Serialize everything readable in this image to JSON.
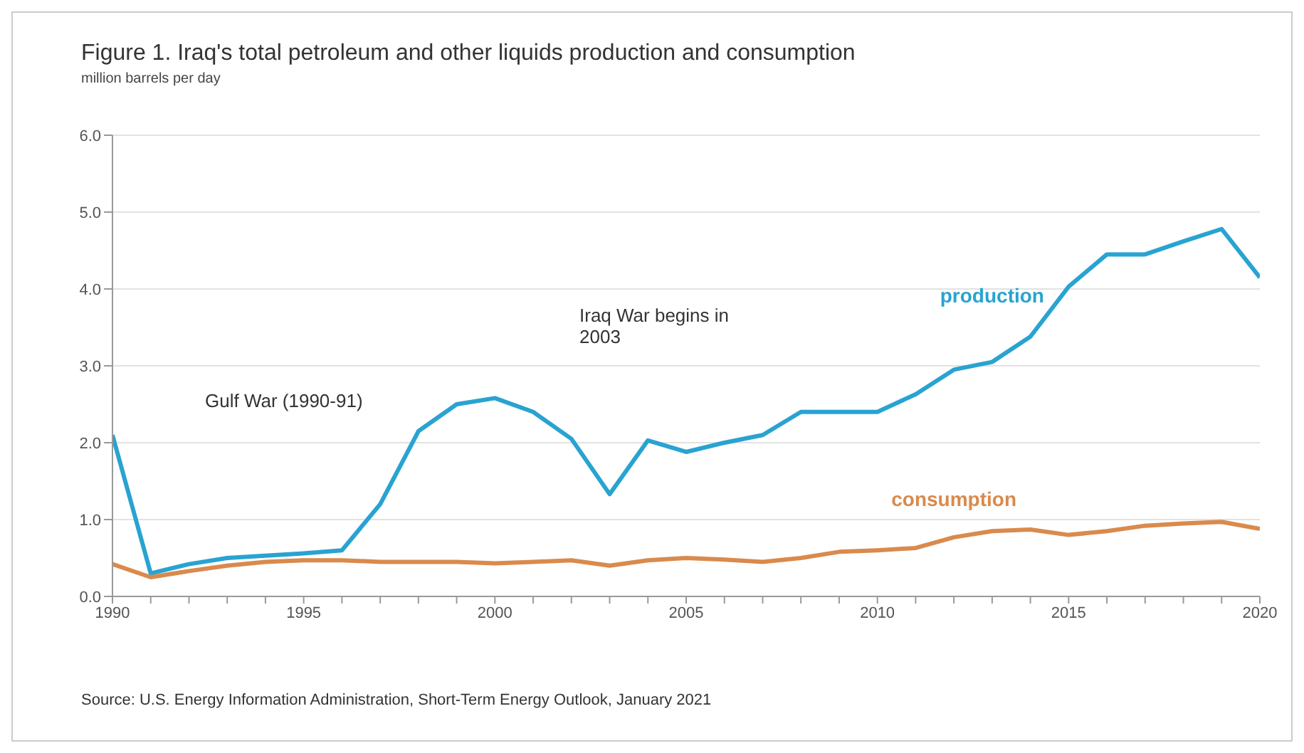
{
  "chart_data": {
    "type": "line",
    "title": "Figure 1. Iraq's total petroleum and other liquids production and consumption",
    "ylabel": "million barrels per day",
    "x": [
      1990,
      1991,
      1992,
      1993,
      1994,
      1995,
      1996,
      1997,
      1998,
      1999,
      2000,
      2001,
      2002,
      2003,
      2004,
      2005,
      2006,
      2007,
      2008,
      2009,
      2010,
      2011,
      2012,
      2013,
      2014,
      2015,
      2016,
      2017,
      2018,
      2019,
      2020
    ],
    "series": [
      {
        "name": "production",
        "color": "#29a3d1",
        "values": [
          2.1,
          0.3,
          0.42,
          0.5,
          0.53,
          0.56,
          0.6,
          1.2,
          2.15,
          2.5,
          2.58,
          2.4,
          2.05,
          1.33,
          2.03,
          1.88,
          2.0,
          2.1,
          2.4,
          2.4,
          2.4,
          2.63,
          2.95,
          3.05,
          3.38,
          4.03,
          4.45,
          4.45,
          4.62,
          4.78,
          4.15
        ]
      },
      {
        "name": "consumption",
        "color": "#d98a4c",
        "values": [
          0.42,
          0.25,
          0.33,
          0.4,
          0.45,
          0.47,
          0.47,
          0.45,
          0.45,
          0.45,
          0.43,
          0.45,
          0.47,
          0.4,
          0.47,
          0.5,
          0.48,
          0.45,
          0.5,
          0.58,
          0.6,
          0.63,
          0.77,
          0.85,
          0.87,
          0.8,
          0.85,
          0.92,
          0.95,
          0.97,
          0.88
        ]
      }
    ],
    "xlim": [
      1990,
      2020
    ],
    "xticks": [
      1990,
      {
        "value": 1991,
        "label": null
      },
      {
        "value": 1992,
        "label": null
      },
      {
        "value": 1993,
        "label": null
      },
      {
        "value": 1994,
        "label": null
      },
      1995,
      {
        "value": 1996,
        "label": null
      },
      {
        "value": 1997,
        "label": null
      },
      {
        "value": 1998,
        "label": null
      },
      {
        "value": 1999,
        "label": null
      },
      2000,
      {
        "value": 2001,
        "label": null
      },
      {
        "value": 2002,
        "label": null
      },
      {
        "value": 2003,
        "label": null
      },
      {
        "value": 2004,
        "label": null
      },
      2005,
      {
        "value": 2006,
        "label": null
      },
      {
        "value": 2007,
        "label": null
      },
      {
        "value": 2008,
        "label": null
      },
      {
        "value": 2009,
        "label": null
      },
      2010,
      {
        "value": 2011,
        "label": null
      },
      {
        "value": 2012,
        "label": null
      },
      {
        "value": 2013,
        "label": null
      },
      {
        "value": 2014,
        "label": null
      },
      2015,
      {
        "value": 2016,
        "label": null
      },
      {
        "value": 2017,
        "label": null
      },
      {
        "value": 2018,
        "label": null
      },
      {
        "value": 2019,
        "label": null
      },
      2020
    ],
    "ylim": [
      0,
      6
    ],
    "yticks": [
      {
        "value": 0,
        "label": "0.0"
      },
      {
        "value": 1,
        "label": "1.0"
      },
      {
        "value": 2,
        "label": "2.0"
      },
      {
        "value": 3,
        "label": "3.0"
      },
      {
        "value": 4,
        "label": "4.0"
      },
      {
        "value": 5,
        "label": "5.0"
      },
      {
        "value": 6,
        "label": "6.0"
      }
    ],
    "grid": "y",
    "legend": false,
    "marker": "none",
    "line_style": "solid",
    "annotations": [
      "Gulf War (1990-91)",
      "Iraq War begins in 2003",
      "Source: U.S. Energy Information Administration, Short-Term Energy Outlook, January 2021"
    ]
  }
}
